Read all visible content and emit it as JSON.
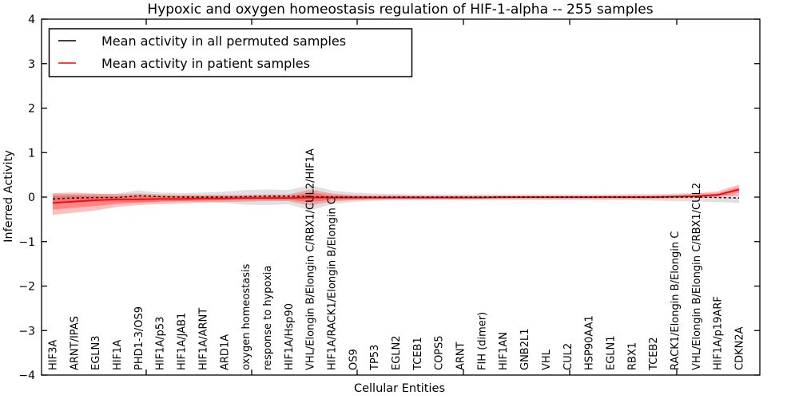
{
  "chart_data": {
    "type": "line",
    "title": "Hypoxic and oxygen homeostasis regulation of HIF-1-alpha -- 255 samples",
    "xlabel": "Cellular Entities",
    "ylabel": "Inferred Activity",
    "ylim": [
      -4,
      4
    ],
    "yticks": [
      4,
      3,
      2,
      1,
      0,
      -1,
      -2,
      -3,
      -4
    ],
    "grid": false,
    "legend_position": "upper left",
    "categories": [
      "HIF3A",
      "ARNT/IPAS",
      "EGLN3",
      "HIF1A",
      "PHD1-3/OS9",
      "HIF1A/p53",
      "HIF1A/JAB1",
      "HIF1A/ARNT",
      "ARD1A",
      "oxygen homeostasis",
      "response to hypoxia",
      "HIF1A/Hsp90",
      "VHL/Elongin B/Elongin C/RBX1/CUL2/HIF1A",
      "HIF1A/RACK1/Elongin B/Elongin C",
      "OS9",
      "TP53",
      "EGLN2",
      "TCEB1",
      "COPS5",
      "ARNT",
      "FIH (dimer)",
      "HIF1AN",
      "GNB2L1",
      "VHL",
      "CUL2",
      "HSP90AA1",
      "EGLN1",
      "RBX1",
      "TCEB2",
      "RACK1/Elongin B/Elongin C",
      "VHL/Elongin B/Elongin C/RBX1/CUL2",
      "HIF1A/p19ARF",
      "CDKN2A"
    ],
    "series": [
      {
        "name": "Mean activity in all permuted samples",
        "color": "#000000",
        "style": "dashed",
        "values": [
          -0.04,
          -0.02,
          -0.01,
          -0.01,
          0.03,
          0.01,
          0,
          0,
          0,
          0.01,
          0.02,
          0.02,
          0.01,
          0,
          0,
          0,
          0,
          0,
          0,
          0,
          0,
          0,
          0,
          0,
          0,
          0,
          0,
          0,
          0,
          0,
          0,
          -0.01,
          -0.02
        ]
      },
      {
        "name": "Mean activity in patient samples",
        "color": "#ff0000",
        "style": "solid",
        "values": [
          -0.13,
          -0.1,
          -0.07,
          -0.05,
          -0.05,
          -0.04,
          -0.04,
          -0.03,
          -0.03,
          -0.02,
          -0.02,
          -0.02,
          -0.01,
          -0.01,
          -0.01,
          -0.01,
          -0.01,
          -0.01,
          -0.01,
          -0.01,
          -0.01,
          0,
          0,
          0,
          0,
          0,
          0,
          0,
          0,
          0.01,
          0.02,
          0.05,
          0.17
        ]
      }
    ],
    "bands": [
      {
        "name": "permuted-samples-range",
        "color": "#999999",
        "opacity": 0.3,
        "upper": [
          0.08,
          0.07,
          0.07,
          0.08,
          0.15,
          0.1,
          0.09,
          0.1,
          0.12,
          0.16,
          0.17,
          0.16,
          0.27,
          0.15,
          0.1,
          0.08,
          0.07,
          0.06,
          0.06,
          0.06,
          0.06,
          0.06,
          0.06,
          0.06,
          0.06,
          0.06,
          0.06,
          0.07,
          0.07,
          0.08,
          0.09,
          0.08,
          0.06
        ],
        "lower": [
          -0.14,
          -0.12,
          -0.11,
          -0.1,
          -0.12,
          -0.1,
          -0.1,
          -0.11,
          -0.13,
          -0.17,
          -0.18,
          -0.16,
          -0.3,
          -0.16,
          -0.11,
          -0.08,
          -0.07,
          -0.07,
          -0.07,
          -0.07,
          -0.07,
          -0.07,
          -0.07,
          -0.07,
          -0.07,
          -0.07,
          -0.07,
          -0.07,
          -0.08,
          -0.09,
          -0.1,
          -0.11,
          -0.13
        ]
      },
      {
        "name": "patient-samples-outer-band",
        "color": "#ff0000",
        "opacity": 0.25,
        "upper": [
          0.09,
          0.1,
          0.08,
          0.07,
          0.08,
          0.06,
          0.05,
          0.05,
          0.05,
          0.05,
          0.06,
          0.06,
          0.17,
          0.08,
          0.05,
          0.04,
          0.04,
          0.03,
          0.03,
          0.03,
          0.03,
          0.03,
          0.03,
          0.03,
          0.03,
          0.03,
          0.04,
          0.04,
          0.04,
          0.05,
          0.08,
          0.13,
          0.28
        ],
        "lower": [
          -0.4,
          -0.35,
          -0.3,
          -0.22,
          -0.18,
          -0.16,
          -0.14,
          -0.12,
          -0.11,
          -0.1,
          -0.09,
          -0.09,
          -0.19,
          -0.1,
          -0.07,
          -0.06,
          -0.05,
          -0.05,
          -0.05,
          -0.05,
          -0.04,
          -0.04,
          -0.04,
          -0.04,
          -0.04,
          -0.04,
          -0.04,
          -0.04,
          -0.04,
          -0.03,
          -0.02,
          0.0,
          0.04
        ]
      },
      {
        "name": "patient-samples-inner-band",
        "color": "#ff0000",
        "opacity": 0.3,
        "upper": [
          0.03,
          0.04,
          0.03,
          0.02,
          0.03,
          0.02,
          0.02,
          0.02,
          0.02,
          0.02,
          0.02,
          0.02,
          0.1,
          0.04,
          0.02,
          0.01,
          0.01,
          0.01,
          0.01,
          0.01,
          0.01,
          0.01,
          0.01,
          0.01,
          0.01,
          0.01,
          0.01,
          0.01,
          0.02,
          0.02,
          0.04,
          0.08,
          0.22
        ],
        "lower": [
          -0.28,
          -0.24,
          -0.2,
          -0.15,
          -0.12,
          -0.1,
          -0.09,
          -0.08,
          -0.07,
          -0.06,
          -0.06,
          -0.06,
          -0.11,
          -0.06,
          -0.05,
          -0.04,
          -0.03,
          -0.03,
          -0.03,
          -0.03,
          -0.03,
          -0.03,
          -0.02,
          -0.02,
          -0.02,
          -0.02,
          -0.02,
          -0.02,
          -0.02,
          -0.01,
          0.0,
          0.02,
          0.1
        ]
      }
    ]
  }
}
